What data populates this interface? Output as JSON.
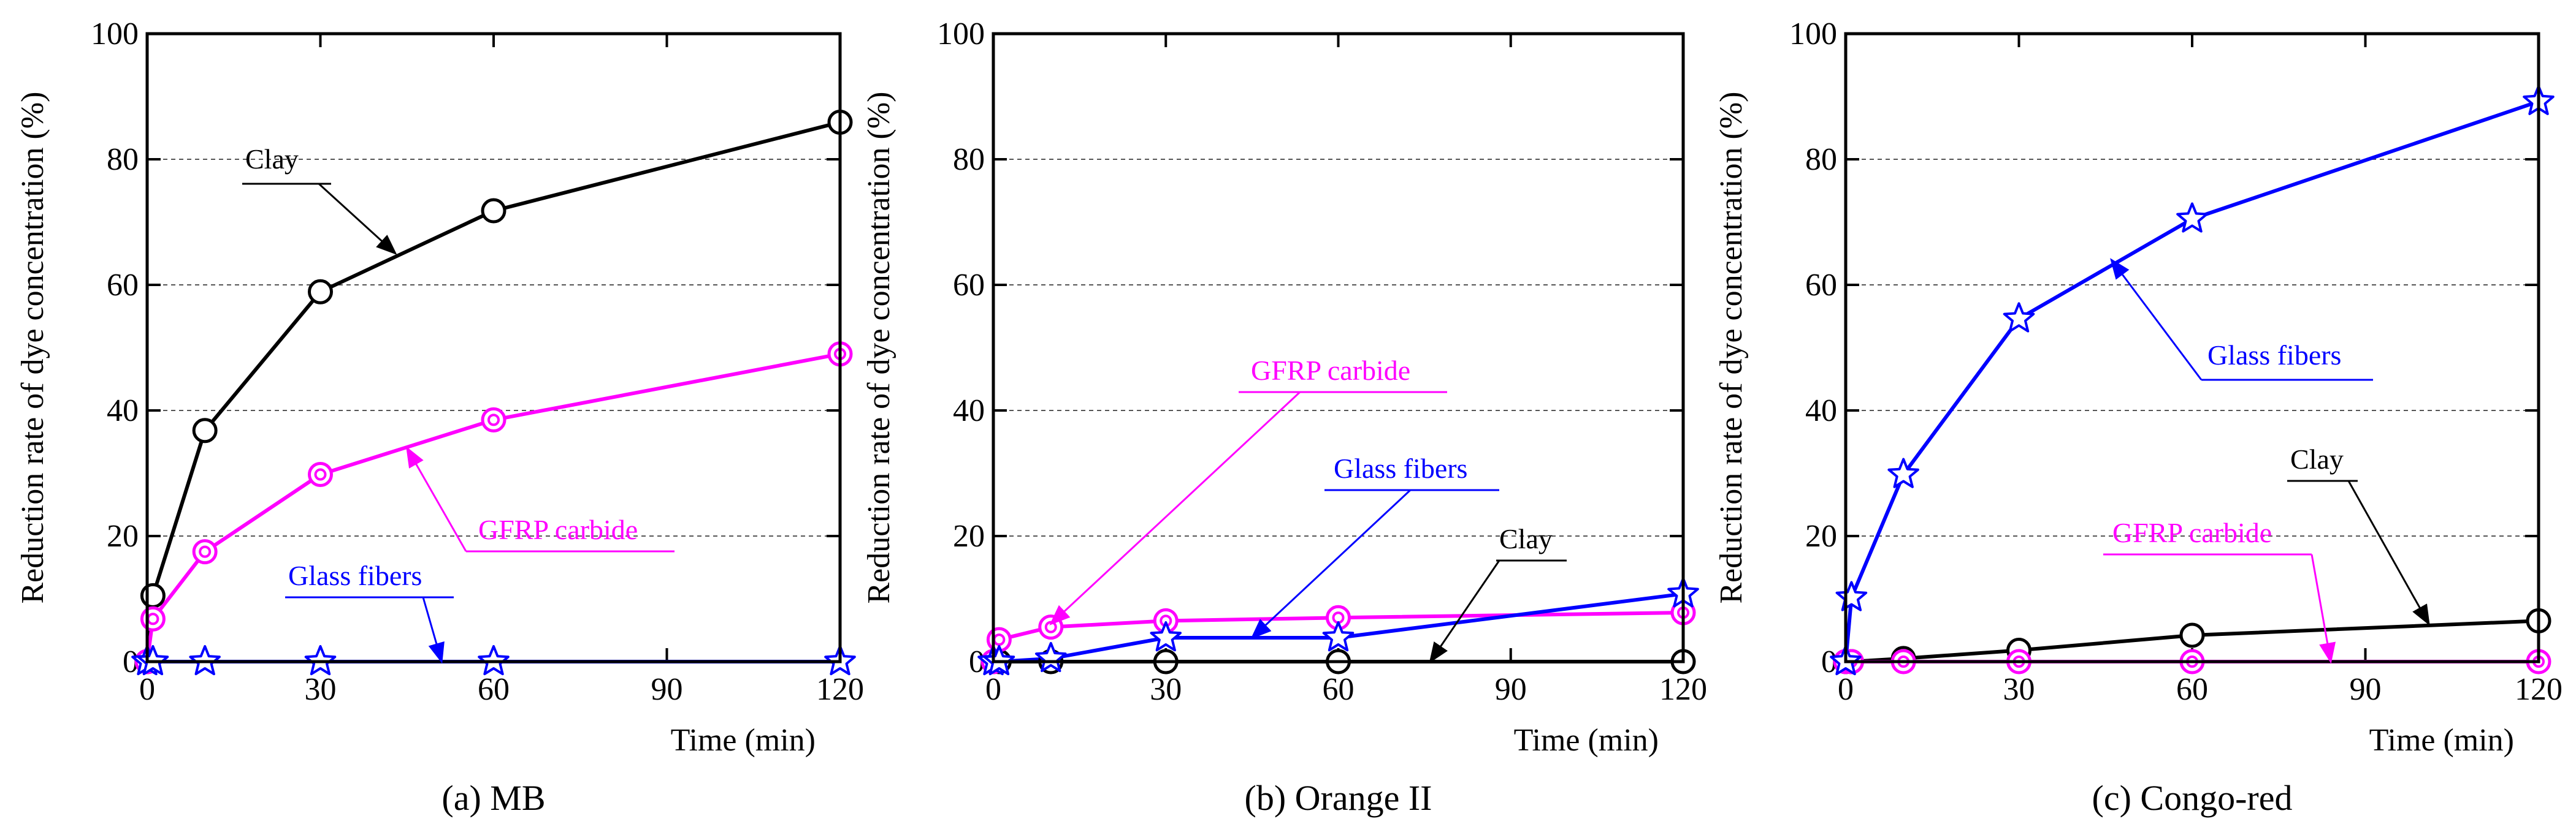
{
  "figure": {
    "charts_count": 3
  },
  "chart_data": [
    {
      "type": "line",
      "caption": "(a) MB",
      "xlabel": "Time (min)",
      "ylabel": "Reduction rate of dye concentration (%)",
      "xlim": [
        0,
        120
      ],
      "ylim": [
        0,
        100
      ],
      "xticks": [
        0,
        30,
        60,
        90,
        120
      ],
      "yticks": [
        0,
        20,
        40,
        60,
        80,
        100
      ],
      "grid": "horizontal dashed",
      "x": [
        0,
        1,
        10,
        30,
        60,
        120
      ],
      "series": [
        {
          "name": "Clay",
          "color": "#000000",
          "marker": "circle",
          "values": [
            0,
            10.5,
            36.8,
            58.9,
            71.8,
            85.9
          ]
        },
        {
          "name": "GFRP carbide",
          "color": "#ff00ff",
          "marker": "double-circle",
          "values": [
            0,
            6.8,
            17.5,
            29.8,
            38.5,
            49.0
          ]
        },
        {
          "name": "Glass fibers",
          "color": "#0000ff",
          "marker": "star",
          "values": [
            0,
            0,
            0,
            0,
            0,
            0
          ]
        }
      ],
      "annotations": [
        {
          "text": "Clay",
          "series": "Clay"
        },
        {
          "text": "GFRP carbide",
          "series": "GFRP carbide"
        },
        {
          "text": "Glass fibers",
          "series": "Glass fibers"
        }
      ]
    },
    {
      "type": "line",
      "caption": "(b) Orange II",
      "xlabel": "Time (min)",
      "ylabel": "Reduction rate of dye concentration (%)",
      "xlim": [
        0,
        120
      ],
      "ylim": [
        0,
        100
      ],
      "xticks": [
        0,
        30,
        60,
        90,
        120
      ],
      "yticks": [
        0,
        20,
        40,
        60,
        80,
        100
      ],
      "grid": "horizontal dashed",
      "x": [
        0,
        1,
        10,
        30,
        60,
        120
      ],
      "series": [
        {
          "name": "Clay",
          "color": "#000000",
          "marker": "circle",
          "values": [
            0,
            0,
            0,
            0,
            0,
            0
          ]
        },
        {
          "name": "GFRP carbide",
          "color": "#ff00ff",
          "marker": "double-circle",
          "values": [
            0,
            3.5,
            5.5,
            6.5,
            7.0,
            7.8
          ]
        },
        {
          "name": "Glass fibers",
          "color": "#0000ff",
          "marker": "star",
          "values": [
            0,
            0,
            0.5,
            3.8,
            3.8,
            10.8
          ]
        }
      ],
      "annotations": [
        {
          "text": "GFRP carbide",
          "series": "GFRP carbide"
        },
        {
          "text": "Glass fibers",
          "series": "Glass fibers"
        },
        {
          "text": "Clay",
          "series": "Clay"
        }
      ]
    },
    {
      "type": "line",
      "caption": "(c) Congo-red",
      "xlabel": "Time (min)",
      "ylabel": "Reduction rate of dye concentration (%)",
      "xlim": [
        0,
        120
      ],
      "ylim": [
        0,
        100
      ],
      "xticks": [
        0,
        30,
        60,
        90,
        120
      ],
      "yticks": [
        0,
        20,
        40,
        60,
        80,
        100
      ],
      "grid": "horizontal dashed",
      "x": [
        0,
        1,
        10,
        30,
        60,
        120
      ],
      "series": [
        {
          "name": "Clay",
          "color": "#000000",
          "marker": "circle",
          "values": [
            0,
            0,
            0.5,
            1.8,
            4.2,
            6.5
          ]
        },
        {
          "name": "GFRP carbide",
          "color": "#ff00ff",
          "marker": "double-circle",
          "values": [
            0,
            0,
            0,
            0,
            0,
            0
          ]
        },
        {
          "name": "Glass fibers",
          "color": "#0000ff",
          "marker": "star",
          "values": [
            0,
            10.2,
            29.8,
            54.6,
            70.5,
            89.2
          ]
        }
      ],
      "annotations": [
        {
          "text": "Glass fibers",
          "series": "Glass fibers"
        },
        {
          "text": "Clay",
          "series": "Clay"
        },
        {
          "text": "GFRP carbide",
          "series": "GFRP carbide"
        }
      ]
    }
  ]
}
